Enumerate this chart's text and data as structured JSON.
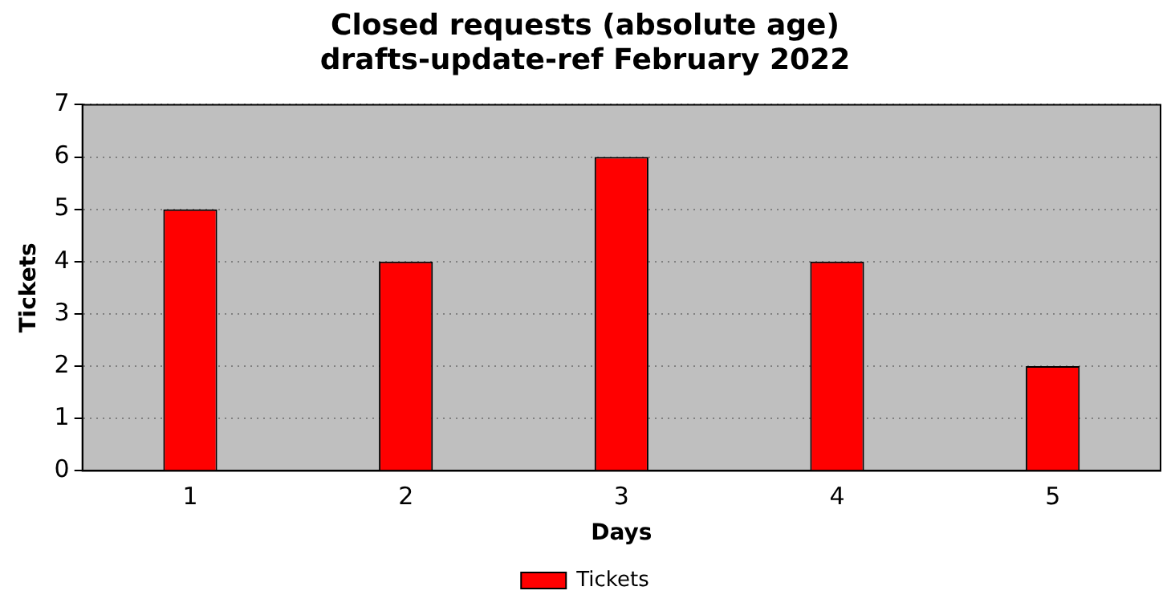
{
  "chart_data": {
    "type": "bar",
    "title": "Closed requests (absolute age)\ndrafts-update-ref February 2022",
    "xlabel": "Days",
    "ylabel": "Tickets",
    "categories": [
      "1",
      "2",
      "3",
      "4",
      "5"
    ],
    "series": [
      {
        "name": "Tickets",
        "color": "#ff0000",
        "values": [
          5,
          4,
          6,
          4,
          2
        ]
      }
    ],
    "ylim": [
      0,
      7
    ],
    "yticks": [
      0,
      1,
      2,
      3,
      4,
      5,
      6,
      7
    ],
    "grid": "y",
    "legend": "bottom"
  }
}
